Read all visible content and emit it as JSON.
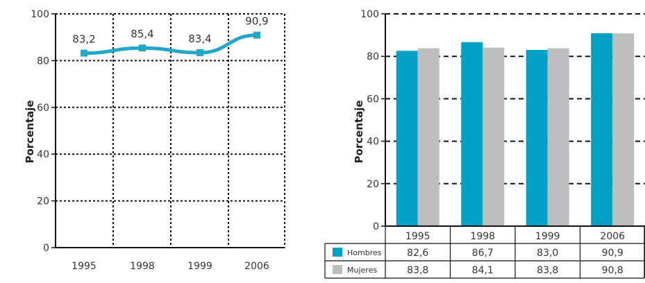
{
  "chart_data": [
    {
      "type": "line",
      "ylabel": "Porcentaje",
      "ylim": [
        0,
        100
      ],
      "yticks": [
        "0",
        "20",
        "40",
        "60",
        "80",
        "100"
      ],
      "x": [
        "1995",
        "1998",
        "1999",
        "2006"
      ],
      "values": [
        83.2,
        85.4,
        83.4,
        90.9
      ],
      "value_labels": [
        "83,2",
        "85,4",
        "83,4",
        "90,9"
      ],
      "grid": true,
      "colors": {
        "line": "#22a7c9",
        "marker": "#22a7c9"
      }
    },
    {
      "type": "bar",
      "ylabel": "Porcentaje",
      "ylim": [
        0,
        100
      ],
      "yticks": [
        "0",
        "20",
        "40",
        "60",
        "80",
        "100"
      ],
      "categories": [
        "1995",
        "1998",
        "1999",
        "2006"
      ],
      "series": [
        {
          "name": "Hombres",
          "values": [
            82.6,
            86.7,
            83.0,
            90.9
          ],
          "labels": [
            "82,6",
            "86,7",
            "83,0",
            "90,9"
          ],
          "color": "#00a1c6"
        },
        {
          "name": "Mujeres",
          "values": [
            83.8,
            84.1,
            83.8,
            90.8
          ],
          "labels": [
            "83,8",
            "84,1",
            "83,8",
            "90,8"
          ],
          "color": "#bcbec0"
        }
      ],
      "grid": true,
      "legend": "table-below"
    }
  ]
}
